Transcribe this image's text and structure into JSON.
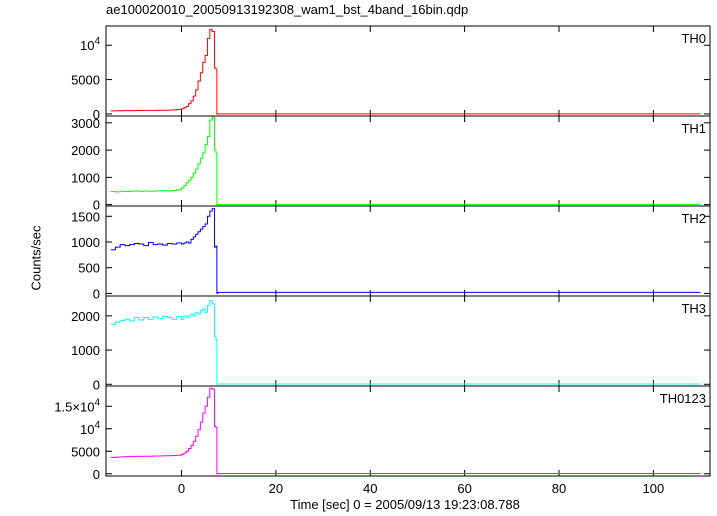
{
  "title": "ae100020010_20050913192308_wam1_bst_4band_16bin.qdp",
  "chart_data": {
    "type": "line",
    "xlabel": "Time [sec] 0 = 2005/09/13 19:23:08.788",
    "ylabel": "Counts/sec",
    "xlim": [
      -16,
      112
    ],
    "x_ticks": [
      0,
      20,
      40,
      60,
      80,
      100
    ],
    "x": [
      -15,
      -14,
      -13,
      -12,
      -11,
      -10,
      -9,
      -8,
      -7,
      -6,
      -5,
      -4,
      -3,
      -2,
      -1,
      0,
      0.5,
      1,
      1.5,
      2,
      2.5,
      3,
      3.5,
      4,
      4.5,
      5,
      5.5,
      6,
      6.5,
      7,
      7.3,
      7.5,
      7.7,
      8,
      10,
      20,
      30,
      40,
      50,
      60,
      70,
      80,
      90,
      100,
      110
    ],
    "panels": [
      {
        "name": "TH0",
        "color": "#ff0000",
        "ylim": [
          -300,
          12800
        ],
        "y_ticks": [
          {
            "value": 0,
            "label": "0"
          },
          {
            "value": 5000,
            "label": "5000"
          },
          {
            "value": 10000,
            "label": "10",
            "exp": "4"
          }
        ],
        "y": [
          450,
          460,
          470,
          480,
          490,
          500,
          500,
          510,
          510,
          520,
          530,
          540,
          560,
          590,
          640,
          760,
          900,
          1100,
          1500,
          1900,
          2600,
          3500,
          4800,
          6000,
          7500,
          8500,
          11000,
          12300,
          12000,
          6700,
          6500,
          0,
          10,
          10,
          10,
          10,
          10,
          10,
          10,
          10,
          10,
          10,
          10,
          10,
          10
        ]
      },
      {
        "name": "TH1",
        "color": "#00ff00",
        "ylim": [
          -50,
          3250
        ],
        "y_ticks": [
          {
            "value": 0,
            "label": "0"
          },
          {
            "value": 1000,
            "label": "1000"
          },
          {
            "value": 2000,
            "label": "2000"
          },
          {
            "value": 3000,
            "label": "3000"
          }
        ],
        "y": [
          480,
          470,
          490,
          480,
          490,
          500,
          490,
          500,
          490,
          500,
          510,
          510,
          500,
          520,
          540,
          610,
          700,
          800,
          900,
          1000,
          1150,
          1300,
          1500,
          1700,
          1900,
          2200,
          2500,
          3100,
          3200,
          2000,
          1900,
          0,
          10,
          10,
          10,
          10,
          10,
          10,
          10,
          10,
          10,
          10,
          10,
          10,
          10
        ]
      },
      {
        "name": "TH2",
        "color": "#0000ff",
        "ylim": [
          -50,
          1700
        ],
        "y_ticks": [
          {
            "value": 0,
            "label": "0"
          },
          {
            "value": 500,
            "label": "500"
          },
          {
            "value": 1000,
            "label": "1000"
          },
          {
            "value": 1500,
            "label": "1500"
          }
        ],
        "y": [
          850,
          900,
          950,
          930,
          950,
          970,
          960,
          930,
          990,
          950,
          960,
          940,
          970,
          960,
          980,
          960,
          980,
          1000,
          980,
          1050,
          1100,
          1150,
          1200,
          1250,
          1300,
          1350,
          1500,
          1600,
          1650,
          900,
          920,
          0,
          20,
          20,
          20,
          20,
          20,
          20,
          20,
          20,
          20,
          20,
          20,
          20,
          20
        ]
      },
      {
        "name": "TH3",
        "color": "#00ffff",
        "ylim": [
          -50,
          2580
        ],
        "y_ticks": [
          {
            "value": 0,
            "label": "0"
          },
          {
            "value": 1000,
            "label": "1000"
          },
          {
            "value": 2000,
            "label": "2000"
          }
        ],
        "y": [
          1750,
          1820,
          1860,
          1900,
          1850,
          1950,
          1880,
          1950,
          1900,
          1970,
          1920,
          1990,
          1950,
          1900,
          1980,
          1900,
          2000,
          1950,
          2000,
          2050,
          2000,
          2100,
          2050,
          2150,
          2200,
          2100,
          2300,
          2450,
          2350,
          1400,
          1300,
          0,
          10,
          10,
          10,
          10,
          10,
          10,
          10,
          10,
          10,
          10,
          10,
          10,
          10
        ]
      },
      {
        "name": "TH0123",
        "color": "#ff00ff",
        "ylim": [
          -500,
          19500
        ],
        "y_ticks": [
          {
            "value": 0,
            "label": "0"
          },
          {
            "value": 5000,
            "label": "5000"
          },
          {
            "value": 10000,
            "label": "10",
            "exp": "4"
          },
          {
            "value": 15000,
            "label": "1.5×10",
            "exp": "4"
          }
        ],
        "y": [
          3600,
          3700,
          3750,
          3800,
          3800,
          3850,
          3850,
          3900,
          3900,
          3950,
          3950,
          4000,
          4000,
          4050,
          4100,
          4300,
          4600,
          5000,
          5600,
          6300,
          7200,
          8300,
          9800,
          11500,
          13500,
          15000,
          17000,
          19000,
          18800,
          10500,
          10300,
          0,
          50,
          50,
          50,
          50,
          50,
          50,
          50,
          50,
          50,
          50,
          50,
          50,
          50
        ]
      }
    ]
  }
}
